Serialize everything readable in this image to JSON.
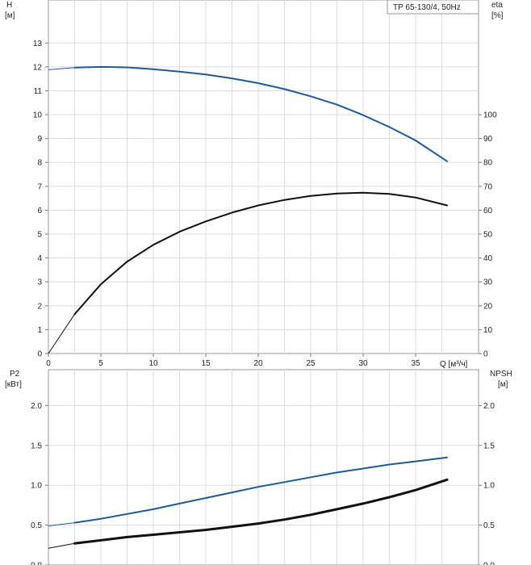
{
  "chart_data": [
    {
      "type": "line",
      "title": "TP 65-130/4, 50Hz",
      "xlabel": "Q [м³/ч]",
      "ylabel": "H",
      "ylabel_unit": "[м]",
      "y2label": "eta",
      "y2label_unit": "[%]",
      "xlim": [
        0,
        41
      ],
      "ylim": [
        0,
        14.8
      ],
      "y2lim": [
        0,
        148
      ],
      "xticks": [
        "0",
        "5",
        "10",
        "15",
        "20",
        "25",
        "30",
        "35"
      ],
      "yticks": [
        "0",
        "1",
        "2",
        "3",
        "4",
        "5",
        "6",
        "7",
        "8",
        "9",
        "10",
        "11",
        "12",
        "13"
      ],
      "y2ticks": [
        "0",
        "10",
        "20",
        "30",
        "40",
        "50",
        "60",
        "70",
        "80",
        "90",
        "100"
      ],
      "grid": true,
      "series": [
        {
          "axis": "left",
          "color": "#1f5a96",
          "points": [
            [
              0,
              11.88
            ],
            [
              2.5,
              11.97
            ],
            [
              5,
              12.0
            ],
            [
              7.5,
              11.98
            ],
            [
              10,
              11.9
            ],
            [
              12.5,
              11.8
            ],
            [
              15,
              11.68
            ],
            [
              17.5,
              11.52
            ],
            [
              20,
              11.32
            ],
            [
              22.5,
              11.07
            ],
            [
              25,
              10.77
            ],
            [
              27.5,
              10.42
            ],
            [
              30,
              9.98
            ],
            [
              32.5,
              9.48
            ],
            [
              35,
              8.92
            ],
            [
              38,
              8.05
            ]
          ]
        },
        {
          "axis": "right",
          "color": "#111111",
          "points": [
            [
              0,
              0
            ],
            [
              2.5,
              16.5
            ],
            [
              5,
              29
            ],
            [
              7.5,
              38.5
            ],
            [
              10,
              45.5
            ],
            [
              12.5,
              51
            ],
            [
              15,
              55.3
            ],
            [
              17.5,
              59
            ],
            [
              20,
              62
            ],
            [
              22.5,
              64.3
            ],
            [
              25,
              66
            ],
            [
              27.5,
              67
            ],
            [
              30,
              67.3
            ],
            [
              32.5,
              66.8
            ],
            [
              35,
              65.3
            ],
            [
              38,
              62
            ]
          ]
        }
      ]
    },
    {
      "type": "line",
      "xlabel": "",
      "ylabel": "P2",
      "ylabel_unit": "[кВт]",
      "y2label": "NPSH",
      "y2label_unit": "[м]",
      "xlim": [
        0,
        41
      ],
      "ylim": [
        0,
        2.45
      ],
      "y2lim": [
        0,
        2.45
      ],
      "yticks": [
        "0.0",
        "0.5",
        "1.0",
        "1.5",
        "2.0"
      ],
      "y2ticks": [
        "0.0",
        "0.5",
        "1.0",
        "1.5",
        "2.0"
      ],
      "grid": true,
      "series": [
        {
          "axis": "left",
          "color": "#1f5a96",
          "points": [
            [
              0,
              0.49
            ],
            [
              2.5,
              0.53
            ],
            [
              5,
              0.58
            ],
            [
              7.5,
              0.64
            ],
            [
              10,
              0.7
            ],
            [
              12.5,
              0.77
            ],
            [
              15,
              0.84
            ],
            [
              17.5,
              0.91
            ],
            [
              20,
              0.98
            ],
            [
              22.5,
              1.04
            ],
            [
              25,
              1.1
            ],
            [
              27.5,
              1.16
            ],
            [
              30,
              1.21
            ],
            [
              32.5,
              1.26
            ],
            [
              35,
              1.3
            ],
            [
              38,
              1.35
            ]
          ]
        },
        {
          "axis": "right",
          "color": "#111111",
          "points": [
            [
              0,
              0.21
            ],
            [
              2.5,
              0.27
            ],
            [
              5,
              0.31
            ],
            [
              7.5,
              0.35
            ],
            [
              10,
              0.38
            ],
            [
              12.5,
              0.41
            ],
            [
              15,
              0.44
            ],
            [
              17.5,
              0.48
            ],
            [
              20,
              0.52
            ],
            [
              22.5,
              0.57
            ],
            [
              25,
              0.63
            ],
            [
              27.5,
              0.7
            ],
            [
              30,
              0.77
            ],
            [
              32.5,
              0.85
            ],
            [
              35,
              0.94
            ],
            [
              38,
              1.07
            ]
          ]
        }
      ]
    }
  ]
}
